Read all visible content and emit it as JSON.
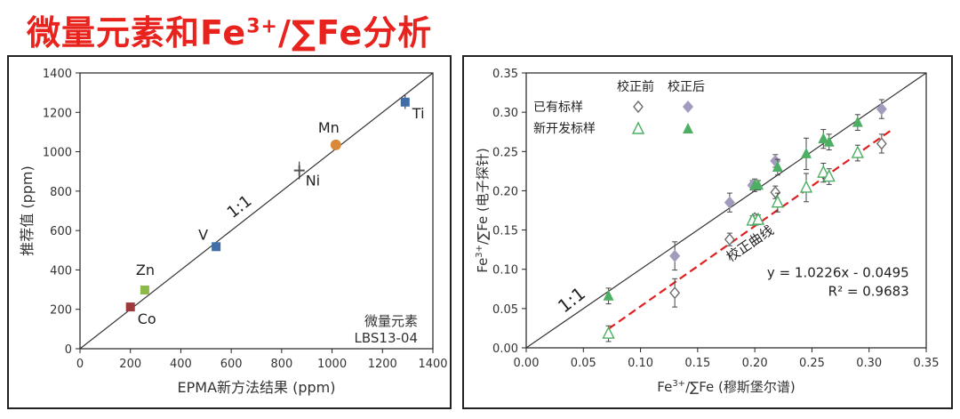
{
  "page": {
    "title_main": "微量元素和Fe",
    "title_sup": "3+",
    "title_tail": "/∑Fe分析"
  },
  "colors": {
    "title": "#e8231d",
    "old_before": "#6d6d6d",
    "old_after": "#a39bbd",
    "new_before": "#4caf63",
    "new_after": "#4caf63",
    "fit_line": "#e02020",
    "Co": "#9b3b3b",
    "Zn": "#8db84a",
    "V": "#3f6ea8",
    "Ni": "#555555",
    "Mn": "#d9893a",
    "Ti": "#3f6ea8"
  },
  "chart_data": [
    {
      "type": "scatter",
      "id": "trace-elements",
      "xlabel": "EPMA新方法结果 (ppm)",
      "ylabel": "推荐值 (ppm)",
      "xlim": [
        0,
        1400
      ],
      "ylim": [
        0,
        1400
      ],
      "xticks": [
        0,
        200,
        400,
        600,
        800,
        1000,
        1200,
        1400
      ],
      "yticks": [
        0,
        200,
        400,
        600,
        800,
        1000,
        1200,
        1400
      ],
      "one_to_one_label": "1:1",
      "annotation_line1": "微量元素",
      "annotation_line2": "LBS13-04",
      "points": [
        {
          "label": "Co",
          "x": 200,
          "y": 212,
          "xerr": 8,
          "yerr": 8,
          "marker": "square"
        },
        {
          "label": "Zn",
          "x": 257,
          "y": 298,
          "xerr": 8,
          "yerr": 12,
          "marker": "square"
        },
        {
          "label": "V",
          "x": 540,
          "y": 518,
          "xerr": 14,
          "yerr": 15,
          "marker": "square"
        },
        {
          "label": "Ni",
          "x": 870,
          "y": 905,
          "xerr": 18,
          "yerr": 45,
          "marker": "cross"
        },
        {
          "label": "Mn",
          "x": 1015,
          "y": 1035,
          "xerr": 10,
          "yerr": 10,
          "marker": "circle"
        },
        {
          "label": "Ti",
          "x": 1290,
          "y": 1252,
          "xerr": 12,
          "yerr": 35,
          "marker": "square"
        }
      ]
    },
    {
      "type": "scatter",
      "id": "fe3-ratio",
      "xlabel_main": "Fe",
      "xlabel_sup": "3+",
      "xlabel_tail": "/∑Fe (穆斯堡尔谱)",
      "ylabel_main": "Fe",
      "ylabel_sup": "3+",
      "ylabel_tail": "/∑Fe (电子探针)",
      "xlim": [
        0,
        0.35
      ],
      "ylim": [
        0,
        0.35
      ],
      "xticks": [
        "0.00",
        "0.05",
        "0.10",
        "0.15",
        "0.20",
        "0.25",
        "0.30",
        "0.35"
      ],
      "yticks": [
        "0.00",
        "0.05",
        "0.10",
        "0.15",
        "0.20",
        "0.25",
        "0.30",
        "0.35"
      ],
      "one_to_one_label": "1:1",
      "fit_label": "校正曲线",
      "equation": "y = 1.0226x - 0.0495",
      "r_squared": "R² = 0.9683",
      "fit": {
        "slope": 1.0226,
        "intercept": -0.0495,
        "x_range": [
          0.072,
          0.32
        ]
      },
      "legend": {
        "col_before": "校正前",
        "col_after": "校正后",
        "row_old": "已有标样",
        "row_new": "新开发标样"
      },
      "series": [
        {
          "name": "已有标样 校正前",
          "marker": "diamond-open",
          "points": [
            [
              0.13,
              0.07,
              0.018
            ],
            [
              0.178,
              0.138,
              0.008
            ],
            [
              0.2,
              0.165,
              0.005
            ],
            [
              0.218,
              0.198,
              0.008
            ],
            [
              0.311,
              0.26,
              0.012
            ]
          ]
        },
        {
          "name": "已有标样 校正后",
          "marker": "diamond-filled",
          "points": [
            [
              0.13,
              0.117,
              0.018
            ],
            [
              0.178,
              0.185,
              0.012
            ],
            [
              0.198,
              0.207,
              0.006
            ],
            [
              0.218,
              0.238,
              0.008
            ],
            [
              0.311,
              0.304,
              0.012
            ]
          ]
        },
        {
          "name": "新开发标样 校正前",
          "marker": "triangle-open",
          "points": [
            [
              0.072,
              0.018,
              0.01
            ],
            [
              0.198,
              0.162,
              0.006
            ],
            [
              0.203,
              0.163,
              0.006
            ],
            [
              0.22,
              0.185,
              0.012
            ],
            [
              0.245,
              0.204,
              0.018
            ],
            [
              0.26,
              0.223,
              0.012
            ],
            [
              0.265,
              0.218,
              0.01
            ],
            [
              0.29,
              0.248,
              0.01
            ]
          ]
        },
        {
          "name": "新开发标样 校正后",
          "marker": "triangle-filled",
          "points": [
            [
              0.072,
              0.066,
              0.01
            ],
            [
              0.2,
              0.207,
              0.008
            ],
            [
              0.203,
              0.207,
              0.006
            ],
            [
              0.22,
              0.23,
              0.01
            ],
            [
              0.245,
              0.247,
              0.02
            ],
            [
              0.26,
              0.266,
              0.012
            ],
            [
              0.265,
              0.262,
              0.01
            ],
            [
              0.29,
              0.287,
              0.01
            ]
          ]
        }
      ]
    }
  ]
}
